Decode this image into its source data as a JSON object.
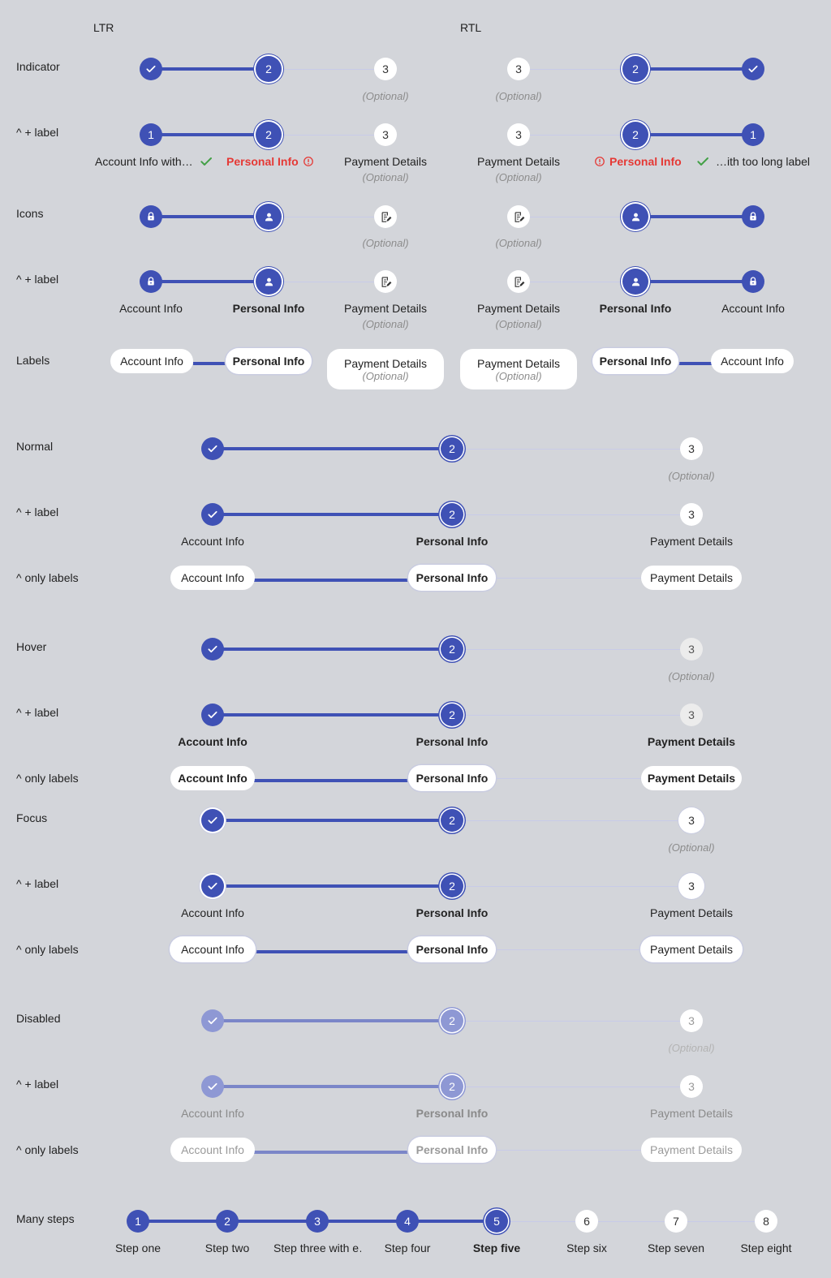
{
  "headers": {
    "ltr": "LTR",
    "rtl": "RTL"
  },
  "row_labels": {
    "indicator": "Indicator",
    "indicator_label": "^ + label",
    "icons": "Icons",
    "icons_label": "^ + label",
    "labels": "Labels",
    "normal": "Normal",
    "normal_label": "^ + label",
    "normal_only": "^ only labels",
    "hover": "Hover",
    "hover_label": "^ + label",
    "hover_only": "^ only labels",
    "focus": "Focus",
    "focus_label": "^ + label",
    "focus_only": "^ only labels",
    "disabled": "Disabled",
    "disabled_label": "^ + label",
    "disabled_only": "^ only labels",
    "many": "Many steps"
  },
  "steps": {
    "n1": "1",
    "n2": "2",
    "n3": "3",
    "account": "Account Info",
    "account_trunc": "Account Info with…",
    "account_trunc_rtl": "…ith too long label",
    "personal": "Personal Info",
    "payment": "Payment Details",
    "optional": "(Optional)"
  },
  "many_steps": [
    {
      "num": "1",
      "label": "Step one"
    },
    {
      "num": "2",
      "label": "Step two"
    },
    {
      "num": "3",
      "label": "Step three with e…"
    },
    {
      "num": "4",
      "label": "Step four"
    },
    {
      "num": "5",
      "label": "Step five"
    },
    {
      "num": "6",
      "label": "Step six"
    },
    {
      "num": "7",
      "label": "Step seven"
    },
    {
      "num": "8",
      "label": "Step eight"
    }
  ],
  "colors": {
    "accent": "#3f51b5",
    "accent_disabled": "#8e98d4",
    "error": "#e53935",
    "success": "#43a047",
    "background": "#d3d5da"
  },
  "icons": [
    "check-icon",
    "lock-icon",
    "person-icon",
    "edit-document-icon",
    "error-icon"
  ]
}
